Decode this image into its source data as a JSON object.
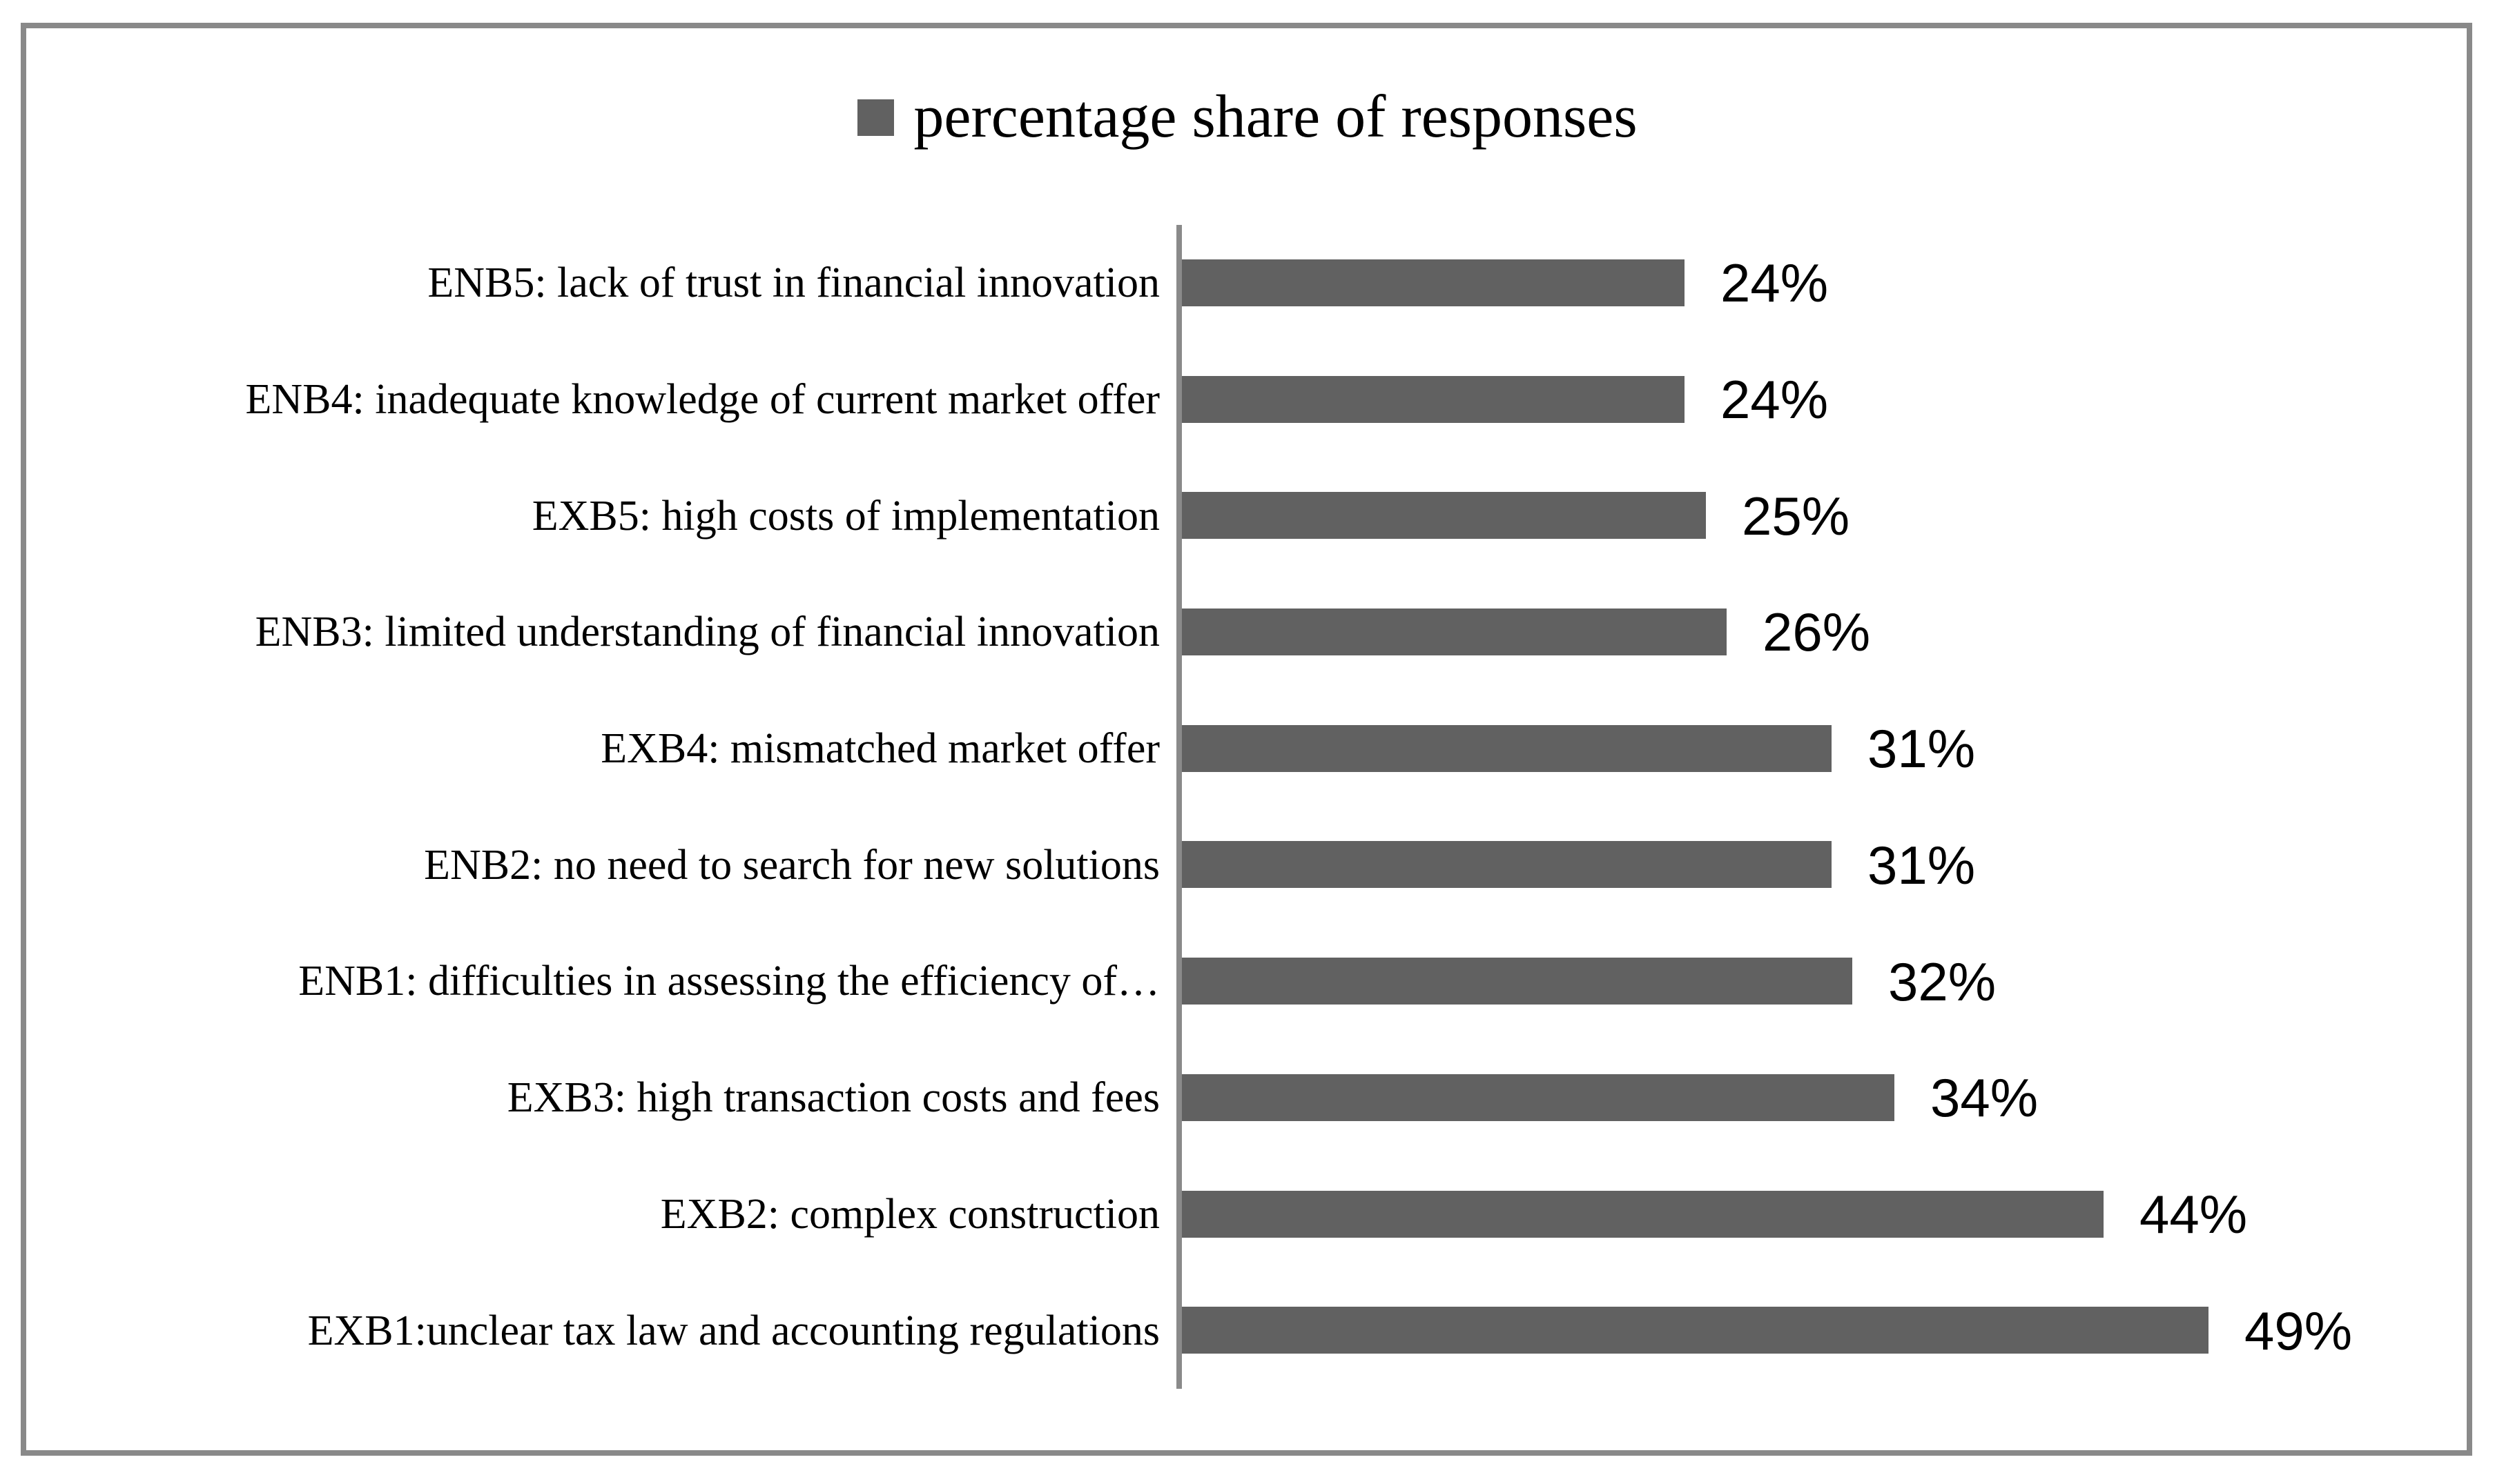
{
  "figure": {
    "background_color": "#ffffff",
    "frame_border_color": "#898989",
    "axis_line_color": "#8a8a8a",
    "text_color": "#000000"
  },
  "chart_data": {
    "type": "bar",
    "orientation": "horizontal",
    "title": "",
    "legend": {
      "label": "percentage share of responses",
      "position": "top-center",
      "swatch_color": "#616161"
    },
    "categories": [
      "ENB5: lack of trust in financial innovation",
      "ENB4: inadequate knowledge of current market offer",
      "EXB5: high costs of implementation",
      "ENB3: limited understanding of financial innovation",
      "EXB4: mismatched market offer",
      "ENB2: no need to search for new solutions",
      "ENB1: difficulties in assessing the efficiency of…",
      "EXB3: high transaction costs and fees",
      "EXB2: complex construction",
      "EXB1:unclear tax law and accounting regulations"
    ],
    "values": [
      24,
      24,
      25,
      26,
      31,
      31,
      32,
      34,
      44,
      49
    ],
    "value_labels": [
      "24%",
      "24%",
      "25%",
      "26%",
      "31%",
      "31%",
      "32%",
      "34%",
      "44%",
      "49%"
    ],
    "bar_color": "#616161",
    "xlim": [
      0,
      60
    ],
    "grid": "off",
    "data_labels": "outside-end",
    "category_axis": "left",
    "value_axis_ticks": "none"
  }
}
